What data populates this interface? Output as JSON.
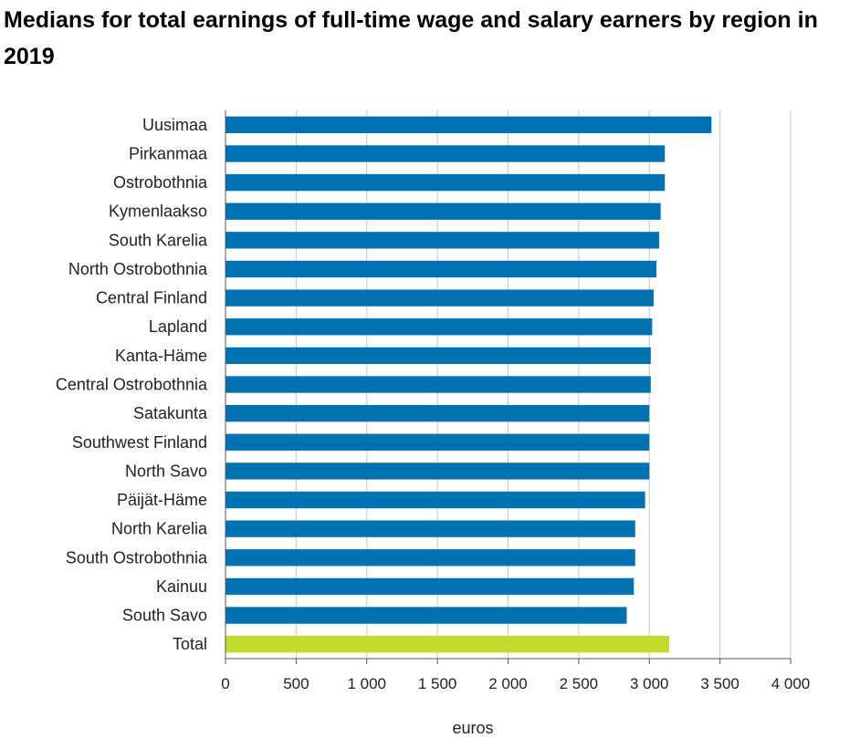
{
  "chart_data": {
    "type": "bar",
    "orientation": "horizontal",
    "title": "Medians for total earnings of full-time wage and salary earners by region in 2019",
    "xlabel": "euros",
    "ylabel": "",
    "xlim": [
      0,
      4000
    ],
    "xticks": [
      0,
      500,
      1000,
      1500,
      2000,
      2500,
      3000,
      3500,
      4000
    ],
    "xtick_labels": [
      "0",
      "500",
      "1 000",
      "1 500",
      "2 000",
      "2 500",
      "3 000",
      "3 500",
      "4 000"
    ],
    "grid": true,
    "legend": "none",
    "colors": {
      "region": "#0072b2",
      "total": "#c2d92e",
      "grid": "#c8c8c8"
    },
    "categories": [
      "Uusimaa",
      "Pirkanmaa",
      "Ostrobothnia",
      "Kymenlaakso",
      "South Karelia",
      "North Ostrobothnia",
      "Central Finland",
      "Lapland",
      "Kanta-Häme",
      "Central Ostrobothnia",
      "Satakunta",
      "Southwest Finland",
      "North Savo",
      "Päijät-Häme",
      "North Karelia",
      "South Ostrobothnia",
      "Kainuu",
      "South Savo",
      "Total"
    ],
    "values": [
      3440,
      3110,
      3110,
      3080,
      3070,
      3050,
      3030,
      3020,
      3010,
      3010,
      3000,
      3000,
      3000,
      2970,
      2900,
      2900,
      2890,
      2840,
      3140
    ],
    "highlight": [
      "Total"
    ]
  }
}
